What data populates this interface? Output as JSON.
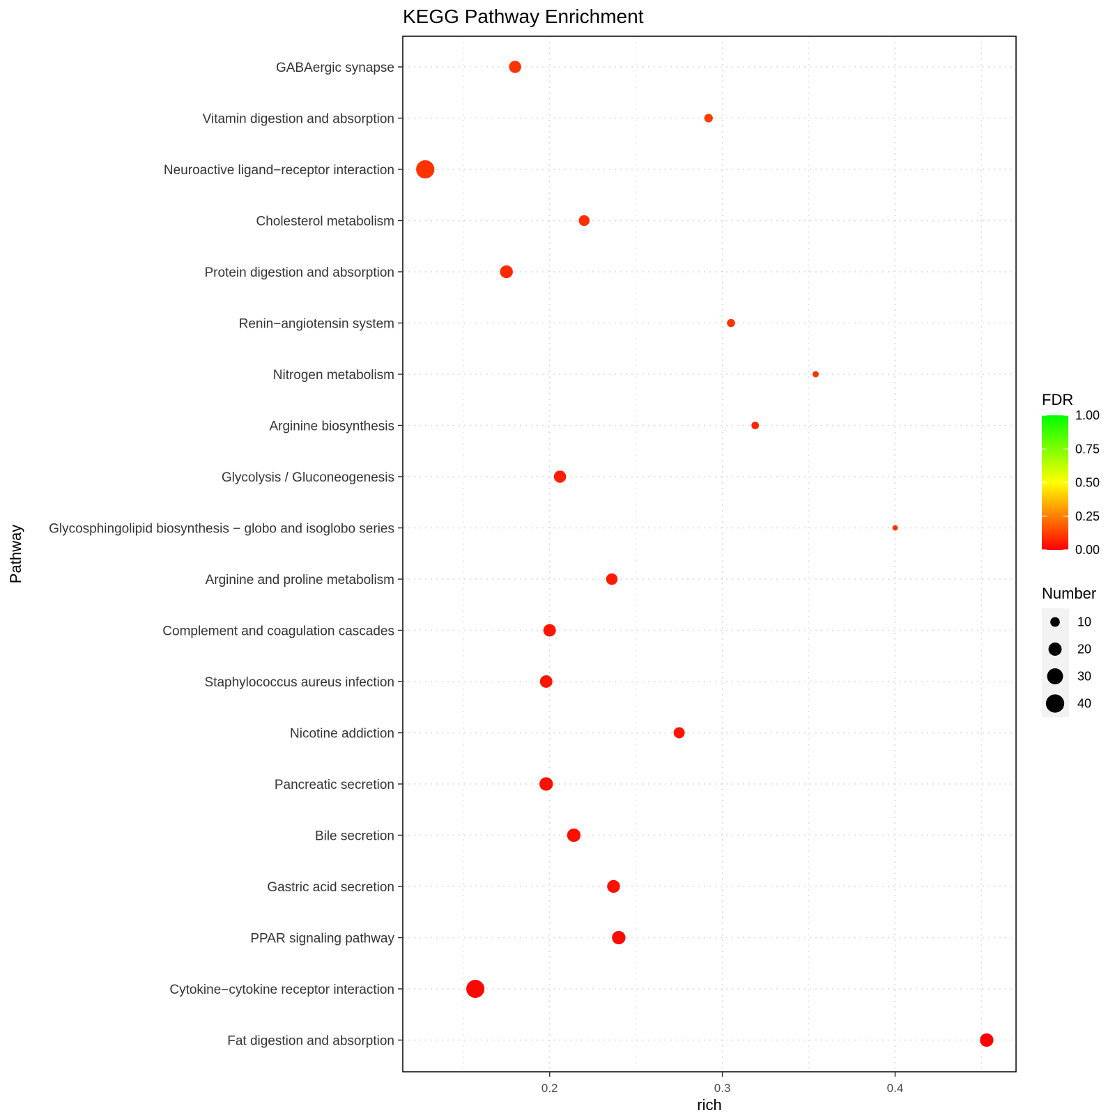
{
  "chart_data": {
    "type": "scatter",
    "title": "KEGG Pathway Enrichment",
    "xlabel": "rich",
    "ylabel": "Pathway",
    "xlim": [
      0.115,
      0.47
    ],
    "x_ticks": [
      0.2,
      0.3,
      0.4
    ],
    "x_tick_labels": [
      "0.2",
      "0.3",
      "0.4"
    ],
    "grid": true,
    "categories": [
      "GABAergic synapse",
      "Vitamin digestion and absorption",
      "Neuroactive ligand−receptor interaction",
      "Cholesterol metabolism",
      "Protein digestion and absorption",
      "Renin−angiotensin system",
      "Nitrogen metabolism",
      "Arginine biosynthesis",
      "Glycolysis / Gluconeogenesis",
      "Glycosphingolipid biosynthesis − globo and isoglobo series",
      "Arginine and proline metabolism",
      "Complement and coagulation cascades",
      "Staphylococcus aureus infection",
      "Nicotine addiction",
      "Pancreatic secretion",
      "Bile secretion",
      "Gastric acid secretion",
      "PPAR signaling pathway",
      "Cytokine−cytokine receptor interaction",
      "Fat digestion and absorption"
    ],
    "series": [
      {
        "rich": [
          0.18,
          0.292,
          0.128,
          0.22,
          0.175,
          0.305,
          0.354,
          0.319,
          0.206,
          0.4,
          0.236,
          0.2,
          0.198,
          0.275,
          0.198,
          0.214,
          0.237,
          0.24,
          0.157,
          0.453
        ],
        "number": [
          17,
          8,
          40,
          13,
          19,
          7,
          4,
          6,
          17,
          3,
          15,
          18,
          18,
          14,
          21,
          21,
          19,
          21,
          39,
          21
        ],
        "fdr": [
          0.1,
          0.12,
          0.1,
          0.09,
          0.08,
          0.1,
          0.1,
          0.07,
          0.06,
          0.1,
          0.05,
          0.04,
          0.04,
          0.04,
          0.03,
          0.03,
          0.03,
          0.02,
          0.01,
          0.0
        ]
      }
    ],
    "legend": {
      "color": {
        "title": "FDR",
        "ticks": [
          "1.00",
          "0.75",
          "0.50",
          "0.25",
          "0.00"
        ],
        "tick_values": [
          1.0,
          0.75,
          0.5,
          0.25,
          0.0
        ],
        "low_color": "#FF0000",
        "high_color": "#00FF00"
      },
      "size": {
        "title": "Number",
        "values": [
          10,
          20,
          30,
          40
        ],
        "labels": [
          "10",
          "20",
          "30",
          "40"
        ]
      },
      "placement": "right"
    },
    "colors": {
      "panel_border": "#000000",
      "grid": "#d9d9d9",
      "legend_key_bg": "#f2f2f2"
    }
  }
}
